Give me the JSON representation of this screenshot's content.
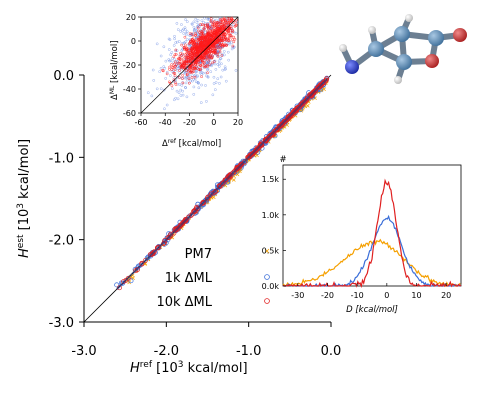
{
  "chart_data": [
    {
      "id": "main",
      "type": "scatter",
      "xlabel": {
        "base": "H",
        "sup": "ref",
        "rest": " [10",
        "sup2": "3",
        "tail": " kcal/mol]"
      },
      "ylabel": {
        "base": "H",
        "sup": "est",
        "rest": " [10",
        "sup2": "3",
        "tail": " kcal/mol]"
      },
      "xlim": [
        -3.0,
        0.0
      ],
      "ylim": [
        -3.0,
        0.0
      ],
      "xticks": [
        -3.0,
        -2.0,
        -1.0,
        0.0
      ],
      "yticks": [
        -3.0,
        -2.0,
        -1.0,
        0.0
      ],
      "xtick_labels": [
        "-3.0",
        "-2.0",
        "-1.0",
        "0.0"
      ],
      "ytick_labels": [
        "-3.0",
        "-2.0",
        "-1.0",
        "0.0"
      ],
      "diagonal": true,
      "legend_position": "lower-middle",
      "series": [
        {
          "name": "PM7",
          "marker": "x",
          "color": "#f5a000",
          "x_range": [
            -2.6,
            -0.05
          ],
          "spread": 0.035,
          "count": 230
        },
        {
          "name": "1k ΔML",
          "marker": "circle",
          "color": "#3b6ed8",
          "x_range": [
            -2.65,
            -0.05
          ],
          "spread": 0.02,
          "count": 260
        },
        {
          "name": "10k ΔML",
          "marker": "circle",
          "color": "#e02020",
          "x_range": [
            -2.65,
            -0.05
          ],
          "spread": 0.008,
          "count": 260
        }
      ]
    },
    {
      "id": "inset-scatter",
      "type": "scatter",
      "xlabel": {
        "base": "Δ",
        "sup": "ref",
        "tail": " [kcal/mol]"
      },
      "ylabel": {
        "base": "Δ",
        "sup": "ML",
        "tail": " [kcal/mol]"
      },
      "xlim": [
        -60,
        20
      ],
      "ylim": [
        -60,
        20
      ],
      "xticks": [
        -60,
        -40,
        -20,
        0,
        20
      ],
      "yticks": [
        -60,
        -40,
        -20,
        0,
        20
      ],
      "xtick_labels": [
        "-60",
        "-40",
        "-20",
        "0",
        "20"
      ],
      "ytick_labels": [
        "-60",
        "-40",
        "-20",
        "0",
        "20"
      ],
      "series": [
        {
          "name": "1k ΔML",
          "color": "#5a7ee0"
        },
        {
          "name": "10k ΔML",
          "color": "#ff1a1a"
        }
      ]
    },
    {
      "id": "inset-histogram",
      "type": "line",
      "xlabel": "D [kcal/mol]",
      "ylabel": "#",
      "xlim": [
        -35,
        25
      ],
      "ylim": [
        0,
        1700
      ],
      "xticks": [
        -30,
        -20,
        -10,
        0,
        10,
        20
      ],
      "yticks": [
        0,
        500,
        1000,
        1500
      ],
      "xtick_labels": [
        "-30",
        "-20",
        "-10",
        "0",
        "10",
        "20"
      ],
      "ytick_labels": [
        "0.0k",
        "0.5k",
        "1.0k",
        "1.5k"
      ],
      "series": [
        {
          "name": "PM7",
          "color": "#f5a000",
          "peak": 620,
          "center": -3,
          "sigma": 9
        },
        {
          "name": "1k ΔML",
          "color": "#3b6ed8",
          "peak": 950,
          "center": 0,
          "sigma": 5
        },
        {
          "name": "10k ΔML",
          "color": "#e02020",
          "peak": 1450,
          "center": 0,
          "sigma": 3.2
        }
      ]
    }
  ],
  "molecule": {
    "atoms": [
      {
        "element": "C",
        "color": "#5b89b5"
      },
      {
        "element": "C",
        "color": "#5b89b5"
      },
      {
        "element": "C",
        "color": "#5b89b5"
      },
      {
        "element": "C",
        "color": "#5b89b5"
      },
      {
        "element": "C",
        "color": "#5b89b5"
      },
      {
        "element": "O",
        "color": "#d83030"
      },
      {
        "element": "O",
        "color": "#d83030"
      },
      {
        "element": "N",
        "color": "#2b3fd8"
      },
      {
        "element": "H",
        "color": "#e8e8e8"
      }
    ]
  }
}
